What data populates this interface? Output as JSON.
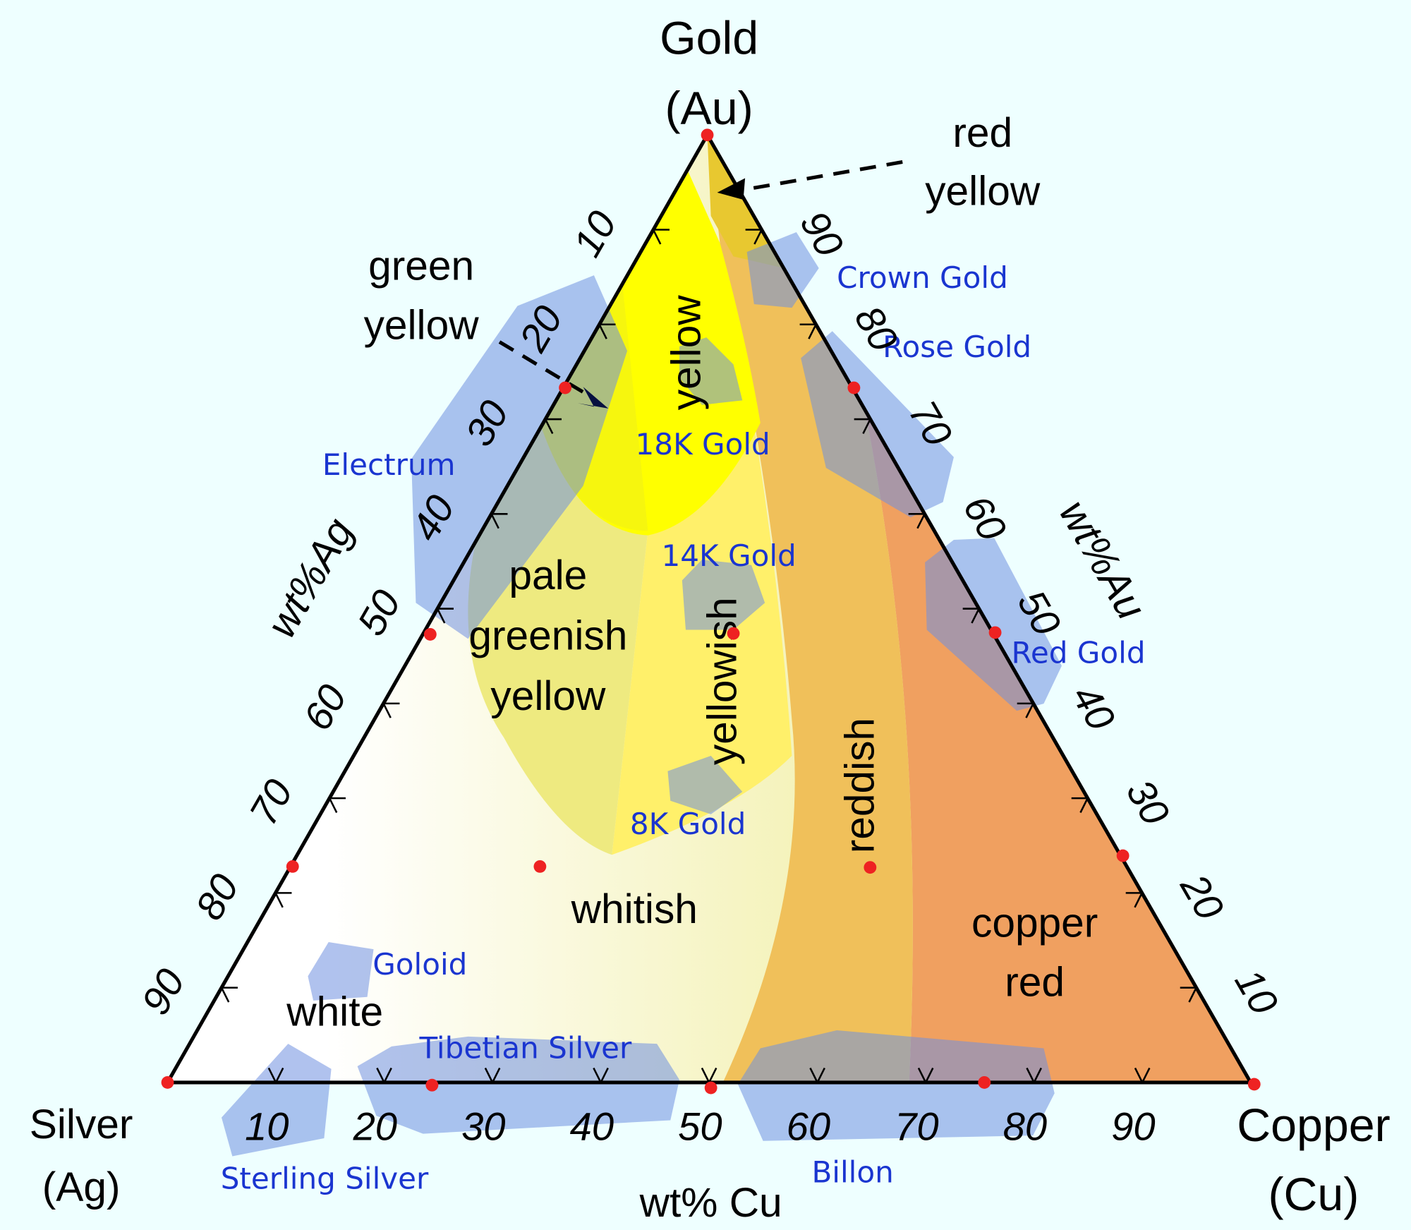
{
  "vertices": {
    "top": {
      "line1": "Gold",
      "line2": "(Au)"
    },
    "left": {
      "line1": "Silver",
      "line2": "(Ag)"
    },
    "right": {
      "line1": "Copper",
      "line2": "(Cu)"
    }
  },
  "axes": {
    "left_label": "wt%Ag",
    "right_label": "wt%Au",
    "bottom_label": "wt% Cu",
    "left_ticks": [
      "10",
      "20",
      "30",
      "40",
      "50",
      "60",
      "70",
      "80",
      "90"
    ],
    "right_ticks": [
      "90",
      "80",
      "70",
      "60",
      "50",
      "40",
      "30",
      "20",
      "10"
    ],
    "bottom_ticks": [
      "10",
      "20",
      "30",
      "40",
      "50",
      "60",
      "70",
      "80",
      "90"
    ]
  },
  "regions": {
    "red_yellow": [
      "red",
      "yellow"
    ],
    "green_yellow": [
      "green",
      "yellow"
    ],
    "yellow": "yellow",
    "pale_greenish_yellow": [
      "pale",
      "greenish",
      "yellow"
    ],
    "yellowish": "yellowish",
    "reddish": "reddish",
    "whitish": "whitish",
    "copper_red": [
      "copper",
      "red"
    ],
    "white": "white"
  },
  "alloys": {
    "crown_gold": "Crown Gold",
    "rose_gold": "Rose Gold",
    "gold_18k": "18K Gold",
    "electrum": "Electrum",
    "gold_14k": "14K Gold",
    "red_gold": "Red Gold",
    "gold_8k": "8K Gold",
    "goloid": "Goloid",
    "tibetian_silver": "Tibetian Silver",
    "sterling_silver": "Sterling Silver",
    "billon": "Billon"
  },
  "colors": {
    "background": "#eeffff",
    "yellow": "#ffff00",
    "pale_greenish_yellow": "#eeea80",
    "yellowish": "#fff06a",
    "reddish": "#f0c05a",
    "copper_red": "#f0a060",
    "red_yellow": "#e8c830",
    "alloy_patch": "#6f8fe0",
    "alloy_text": "#1a35d0",
    "marker": "#ee2222"
  }
}
